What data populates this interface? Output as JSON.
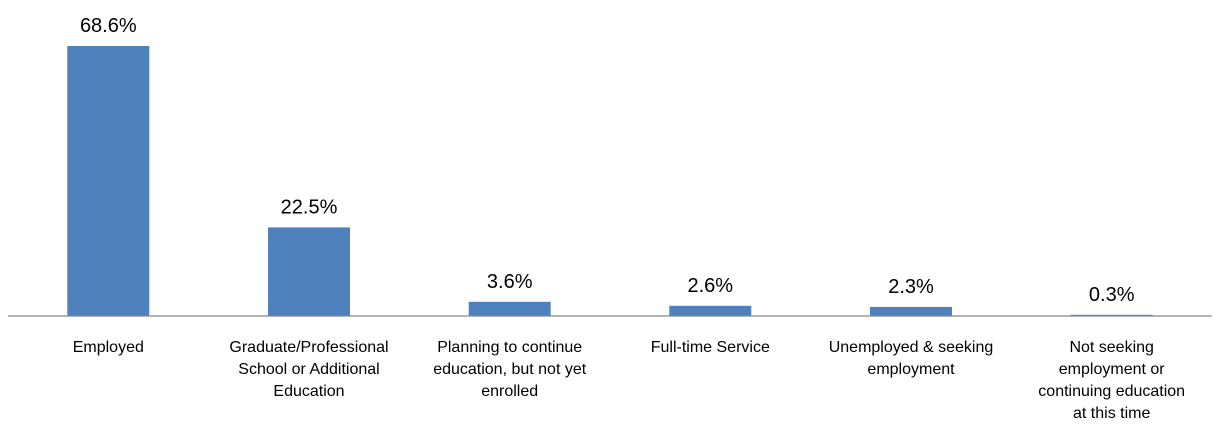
{
  "chart_data": {
    "type": "bar",
    "categories": [
      [
        "Employed"
      ],
      [
        "Graduate/Professional",
        "School or Additional",
        "Education"
      ],
      [
        "Planning to continue",
        "education, but not yet",
        "enrolled"
      ],
      [
        "Full-time Service"
      ],
      [
        "Unemployed & seeking",
        "employment"
      ],
      [
        "Not seeking",
        "employment or",
        "continuing education",
        "at this time"
      ]
    ],
    "values": [
      68.6,
      22.5,
      3.6,
      2.6,
      2.3,
      0.3
    ],
    "data_labels": [
      "68.6%",
      "22.5%",
      "3.6%",
      "2.6%",
      "2.3%",
      "0.3%"
    ],
    "title": "",
    "xlabel": "",
    "ylabel": "",
    "ylim": [
      0,
      70
    ],
    "grid": false,
    "legend": "none",
    "bar_color": "#4f81bd",
    "axis_color": "#868686"
  }
}
